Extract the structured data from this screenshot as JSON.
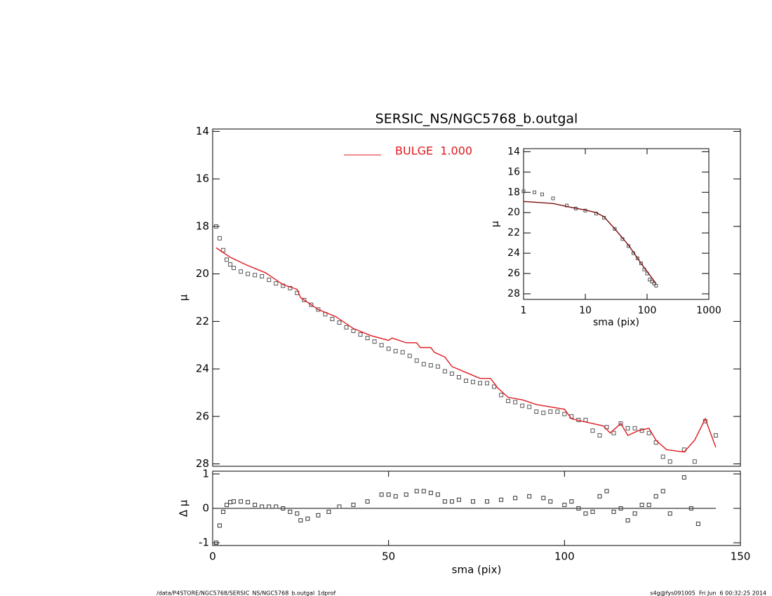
{
  "chart_data": [
    {
      "type": "scatter",
      "title": "SERSIC_NS/NGC5768_b.outgal",
      "ylabel": "μ",
      "yreverse": true,
      "xlim": [
        0,
        150
      ],
      "ylim": [
        13.9,
        28.1
      ],
      "yticks": [
        14,
        16,
        18,
        20,
        22,
        24,
        26,
        28
      ],
      "series": [
        {
          "color": "#555555",
          "marker": "square",
          "x": [
            1,
            2,
            3,
            4,
            5,
            6,
            8,
            10,
            12,
            14,
            16,
            18,
            20,
            22,
            24,
            26,
            28,
            30,
            32,
            34,
            36,
            38,
            40,
            42,
            44,
            46,
            48,
            50,
            52,
            54,
            56,
            58,
            60,
            62,
            64,
            66,
            68,
            70,
            72,
            74,
            76,
            78,
            80,
            82,
            84,
            86,
            88,
            90,
            92,
            94,
            96,
            98,
            100,
            102,
            104,
            106,
            108,
            110,
            112,
            114,
            116,
            118,
            120,
            122,
            124,
            126,
            128,
            130,
            134,
            137,
            140,
            143
          ],
          "values": [
            18.0,
            18.5,
            19.0,
            19.4,
            19.6,
            19.75,
            19.9,
            20.0,
            20.05,
            20.1,
            20.25,
            20.4,
            20.5,
            20.6,
            20.8,
            21.1,
            21.3,
            21.5,
            21.7,
            21.9,
            22.05,
            22.25,
            22.4,
            22.55,
            22.7,
            22.85,
            23.0,
            23.15,
            23.25,
            23.3,
            23.45,
            23.65,
            23.8,
            23.85,
            23.9,
            24.1,
            24.2,
            24.35,
            24.5,
            24.55,
            24.6,
            24.6,
            24.75,
            25.1,
            25.35,
            25.4,
            25.55,
            25.6,
            25.8,
            25.85,
            25.8,
            25.8,
            25.9,
            26.0,
            26.15,
            26.15,
            26.6,
            26.8,
            26.45,
            26.7,
            26.3,
            26.5,
            26.5,
            26.6,
            26.7,
            27.1,
            27.7,
            27.9,
            27.4,
            27.9,
            26.2,
            26.8
          ]
        },
        {
          "name": "BULGE  1.000",
          "color": "#e0191e",
          "marker": "line",
          "x": [
            1,
            5,
            10,
            15,
            20,
            24,
            25,
            30,
            35,
            40,
            45,
            50,
            51,
            55,
            58,
            59,
            62,
            63,
            66,
            68,
            72,
            76,
            79,
            81,
            84,
            88,
            92,
            96,
            100,
            102,
            108,
            111,
            113,
            116,
            118,
            121,
            124,
            126,
            129,
            134,
            137,
            140,
            143
          ],
          "values": [
            18.9,
            19.3,
            19.65,
            19.95,
            20.45,
            20.65,
            21.0,
            21.5,
            21.8,
            22.3,
            22.6,
            22.8,
            22.7,
            22.9,
            22.9,
            23.1,
            23.1,
            23.3,
            23.5,
            23.9,
            24.15,
            24.4,
            24.4,
            24.8,
            25.2,
            25.3,
            25.5,
            25.6,
            25.7,
            26.1,
            26.3,
            26.4,
            26.7,
            26.3,
            26.8,
            26.6,
            26.5,
            27.0,
            27.4,
            27.5,
            27.0,
            26.1,
            27.3
          ]
        }
      ]
    },
    {
      "type": "scatter",
      "xlabel": "sma (pix)",
      "ylabel": "Δ μ",
      "xlim": [
        0,
        150
      ],
      "ylim": [
        -1.08,
        1.08
      ],
      "xticks": [
        0,
        50,
        100,
        150
      ],
      "yticks": [
        -1,
        0,
        1
      ],
      "series": [
        {
          "color": "#333333",
          "marker": "square",
          "x": [
            1,
            2,
            3,
            4,
            5,
            6,
            8,
            10,
            12,
            14,
            16,
            18,
            20,
            22,
            24,
            25,
            27,
            30,
            33,
            36,
            40,
            44,
            48,
            50,
            52,
            55,
            58,
            60,
            62,
            64,
            66,
            68,
            70,
            74,
            78,
            82,
            86,
            90,
            94,
            96,
            100,
            102,
            104,
            106,
            108,
            110,
            112,
            114,
            116,
            118,
            120,
            122,
            124,
            126,
            128,
            130,
            134,
            136,
            138
          ],
          "values": [
            -1.0,
            -0.5,
            -0.1,
            0.1,
            0.18,
            0.2,
            0.2,
            0.18,
            0.1,
            0.05,
            0.05,
            0.05,
            0.0,
            -0.1,
            -0.15,
            -0.35,
            -0.3,
            -0.2,
            -0.1,
            0.05,
            0.1,
            0.2,
            0.4,
            0.4,
            0.35,
            0.4,
            0.5,
            0.5,
            0.45,
            0.4,
            0.2,
            0.2,
            0.25,
            0.2,
            0.2,
            0.25,
            0.3,
            0.35,
            0.3,
            0.2,
            0.1,
            0.2,
            0.0,
            -0.15,
            -0.1,
            0.35,
            0.5,
            -0.1,
            0.0,
            -0.35,
            -0.15,
            0.1,
            0.1,
            0.35,
            0.5,
            -0.15,
            0.9,
            0.0,
            -0.45
          ]
        }
      ]
    },
    {
      "type": "scatter",
      "xlabel": "sma (pix)",
      "ylabel": "μ",
      "xlog": true,
      "yreverse": true,
      "xlim": [
        1,
        1000
      ],
      "ylim": [
        13.7,
        28.55
      ],
      "xticks": [
        1,
        10,
        100,
        1000
      ],
      "yticks": [
        14,
        16,
        18,
        20,
        22,
        24,
        26,
        28
      ],
      "series": [
        {
          "color": "#555555",
          "marker": "square",
          "x": [
            1,
            1.5,
            2,
            3,
            5,
            7,
            10,
            15,
            20,
            30,
            40,
            50,
            60,
            70,
            80,
            90,
            100,
            110,
            120,
            130,
            140
          ],
          "values": [
            17.9,
            18.0,
            18.2,
            18.6,
            19.3,
            19.6,
            19.8,
            20.1,
            20.5,
            21.6,
            22.6,
            23.3,
            24.0,
            24.5,
            25.0,
            25.6,
            26.0,
            26.6,
            26.8,
            27.0,
            27.2
          ]
        },
        {
          "color": "#7a1010",
          "marker": "line",
          "x": [
            1,
            3,
            6,
            10,
            15,
            20,
            30,
            50,
            80,
            100,
            140
          ],
          "values": [
            18.9,
            19.1,
            19.5,
            19.75,
            20.0,
            20.4,
            21.6,
            23.2,
            25.0,
            25.8,
            27.0
          ]
        }
      ]
    }
  ],
  "footer": {
    "left": "/data/P4STORE/NGC5768/SERSIC_NS/NGC5768_b.outgal_1dprof",
    "right": "s4g@fys091005  Fri Jun  6 00:32:25 2014"
  }
}
